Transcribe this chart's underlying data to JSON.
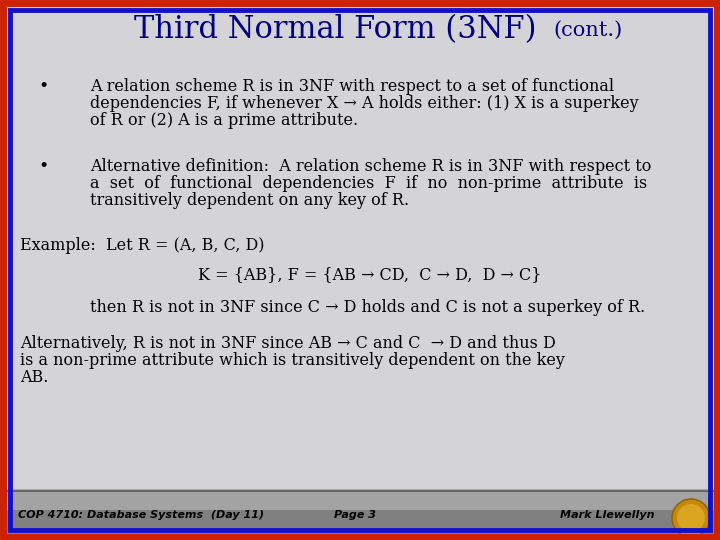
{
  "title_main": "Third Normal Form (3NF)",
  "title_sub": " (cont.)",
  "bg_color": "#d4d4d8",
  "border_outer_color": "#cc2200",
  "border_inner_color": "#1111cc",
  "title_color": "#000080",
  "text_color": "#000000",
  "footer_bg_dark": "#808080",
  "footer_bg_light": "#c0c0c0",
  "bullet1_lines": [
    "A relation scheme R is in 3NF with respect to a set of functional",
    "dependencies F, if whenever X → A holds either: (1) X is a superkey",
    "of R or (2) A is a prime attribute."
  ],
  "bullet2_lines": [
    "Alternative definition:  A relation scheme R is in 3NF with respect to",
    "a  set  of  functional  dependencies  F  if  no  non-prime  attribute  is",
    "transitively dependent on any key of R."
  ],
  "example1": "Example:  Let R = (A, B, C, D)",
  "example2": "K = {AB}, F = {AB → CD,  C → D,  D → C}",
  "example3": "then R is not in 3NF since C → D holds and C is not a superkey of R.",
  "example4a": "Alternatively, R is not in 3NF since AB → C and C  → D and thus D",
  "example4b": "is a non-prime attribute which is transitively dependent on the key",
  "example4c": "AB.",
  "footer_left": "COP 4710: Database Systems  (Day 11)",
  "footer_center": "Page 3",
  "footer_right": "Mark Llewellyn",
  "title_fontsize": 22,
  "title_sub_fontsize": 15,
  "body_fontsize": 11.5,
  "footer_fontsize": 8
}
